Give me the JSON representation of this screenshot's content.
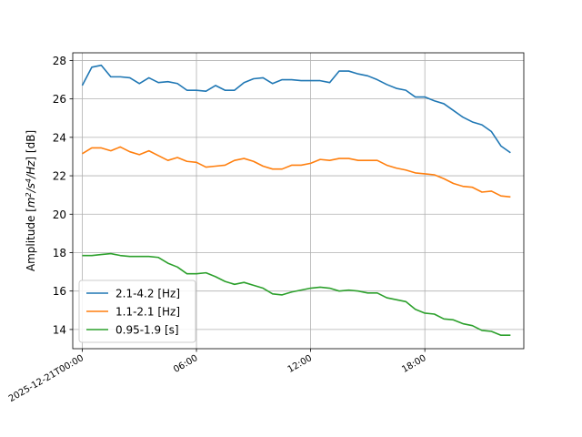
{
  "chart_data": {
    "type": "line",
    "title": "",
    "xlabel": "",
    "ylabel": "Amplitude [m²/s⁴/Hz] [dB]",
    "ylabel_parts": {
      "prefix": "Amplitude [",
      "m": "m",
      "sup1": "2",
      "s": "/s",
      "sup2": "4",
      "hz": "/Hz",
      "suffix": "] [dB]"
    },
    "xlim": [
      -0.5,
      23.2
    ],
    "ylim": [
      13.0,
      28.4
    ],
    "yticks": [
      14,
      16,
      18,
      20,
      22,
      24,
      26,
      28
    ],
    "xticks": [
      0,
      6,
      12,
      18
    ],
    "xtick_labels": [
      "2025-12-21T00:00",
      "06:00",
      "12:00",
      "18:00"
    ],
    "grid": true,
    "legend_position": "lower-left",
    "x": [
      0.0,
      0.5,
      1.0,
      1.5,
      2.0,
      2.5,
      3.0,
      3.5,
      4.0,
      4.5,
      5.0,
      5.5,
      6.0,
      6.5,
      7.0,
      7.5,
      8.0,
      8.5,
      9.0,
      9.5,
      10.0,
      10.5,
      11.0,
      11.5,
      12.0,
      12.5,
      13.0,
      13.5,
      14.0,
      14.5,
      15.0,
      15.5,
      16.0,
      16.5,
      17.0,
      17.5,
      18.0,
      18.5,
      19.0,
      19.5,
      20.0,
      20.5,
      21.0,
      21.5,
      22.0,
      22.5
    ],
    "series": [
      {
        "name": "2.1-4.2 [Hz]",
        "color": "#1f77b4",
        "values": [
          26.7,
          27.65,
          27.75,
          27.15,
          27.15,
          27.1,
          26.8,
          27.1,
          26.85,
          26.9,
          26.8,
          26.45,
          26.45,
          26.4,
          26.7,
          26.45,
          26.45,
          26.85,
          27.05,
          27.1,
          26.8,
          27.0,
          27.0,
          26.95,
          26.95,
          26.95,
          26.85,
          27.45,
          27.45,
          27.3,
          27.2,
          27.0,
          26.75,
          26.55,
          26.45,
          26.1,
          26.1,
          25.9,
          25.75,
          25.4,
          25.05,
          24.8,
          24.65,
          24.3,
          23.55,
          23.2
        ]
      },
      {
        "name": "1.1-2.1 [Hz]",
        "color": "#ff7f0e",
        "values": [
          23.15,
          23.45,
          23.45,
          23.3,
          23.5,
          23.25,
          23.1,
          23.3,
          23.05,
          22.8,
          22.95,
          22.75,
          22.7,
          22.45,
          22.5,
          22.55,
          22.8,
          22.9,
          22.75,
          22.5,
          22.35,
          22.35,
          22.55,
          22.55,
          22.65,
          22.85,
          22.8,
          22.9,
          22.9,
          22.8,
          22.8,
          22.8,
          22.55,
          22.4,
          22.3,
          22.15,
          22.1,
          22.05,
          21.85,
          21.6,
          21.45,
          21.4,
          21.15,
          21.2,
          20.95,
          20.9
        ]
      },
      {
        "name": "0.95-1.9 [s]",
        "color": "#2ca02c",
        "values": [
          17.85,
          17.85,
          17.9,
          17.95,
          17.85,
          17.8,
          17.8,
          17.8,
          17.75,
          17.45,
          17.25,
          16.9,
          16.9,
          16.95,
          16.75,
          16.5,
          16.35,
          16.45,
          16.3,
          16.15,
          15.85,
          15.8,
          15.95,
          16.05,
          16.15,
          16.2,
          16.15,
          16.0,
          16.05,
          16.0,
          15.9,
          15.9,
          15.65,
          15.55,
          15.45,
          15.05,
          14.85,
          14.8,
          14.55,
          14.5,
          14.3,
          14.2,
          13.95,
          13.9,
          13.7,
          13.7
        ]
      }
    ]
  }
}
